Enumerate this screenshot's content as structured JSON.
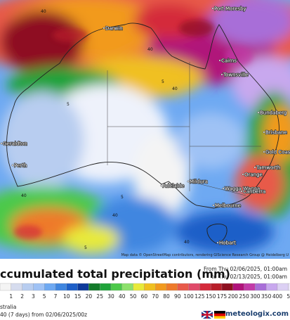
{
  "map": {
    "cities": [
      {
        "label": "Port Moresby"
      },
      {
        "label": "Darwin"
      },
      {
        "label": "Cairns"
      },
      {
        "label": "Townsville"
      },
      {
        "label": "Bundaberg"
      },
      {
        "label": "Brisbane"
      },
      {
        "label": "Gold Coast"
      },
      {
        "label": "Tamworth"
      },
      {
        "label": "Orange"
      },
      {
        "label": "Wagga Wagga"
      },
      {
        "label": "Canberra"
      },
      {
        "label": "Mildura"
      },
      {
        "label": "Adelaide"
      },
      {
        "label": "Melbourne"
      },
      {
        "label": "Hobart"
      },
      {
        "label": "Geraldton"
      },
      {
        "label": "Perth"
      }
    ],
    "contour_labels": [
      "40",
      "40",
      "5",
      "5",
      "40",
      "5",
      "40",
      "40",
      "5",
      "40"
    ],
    "attribution": "Map data © OpenStreetMap contributors, rendering GIScience Research Group @ Heidelberg U"
  },
  "footer": {
    "title": "ccumulated total precipitation (mm)",
    "from": "From Thu 02/06/2025, 01:00am",
    "to": "to Thu 02/13/2025, 01:00am",
    "region": "stralia",
    "model": "40 (7 days) from 02/06/2025/00z",
    "brand": "meteologix.com"
  },
  "scale": {
    "labels": [
      1,
      2,
      3,
      5,
      7,
      10,
      15,
      20,
      25,
      30,
      40,
      50,
      60,
      70,
      80,
      90,
      100,
      125,
      150,
      175,
      200,
      250,
      300,
      350,
      400,
      5
    ],
    "colors": [
      "#f4f4f4",
      "#d6dcee",
      "#b8cdf0",
      "#9fc2f5",
      "#6ea9f2",
      "#3f86e0",
      "#1e5fc8",
      "#0e3a9a",
      "#127a2a",
      "#1fa33a",
      "#4cc94a",
      "#8de06c",
      "#e8ea3a",
      "#f0c020",
      "#f29a1e",
      "#ee7a2a",
      "#e85a4a",
      "#e04a6a",
      "#d42a3a",
      "#b81e2a",
      "#8e1020",
      "#b0127a",
      "#c23aa8",
      "#a86ed8",
      "#c8a8ee",
      "#dcd0f4",
      "#eee8fa"
    ]
  }
}
